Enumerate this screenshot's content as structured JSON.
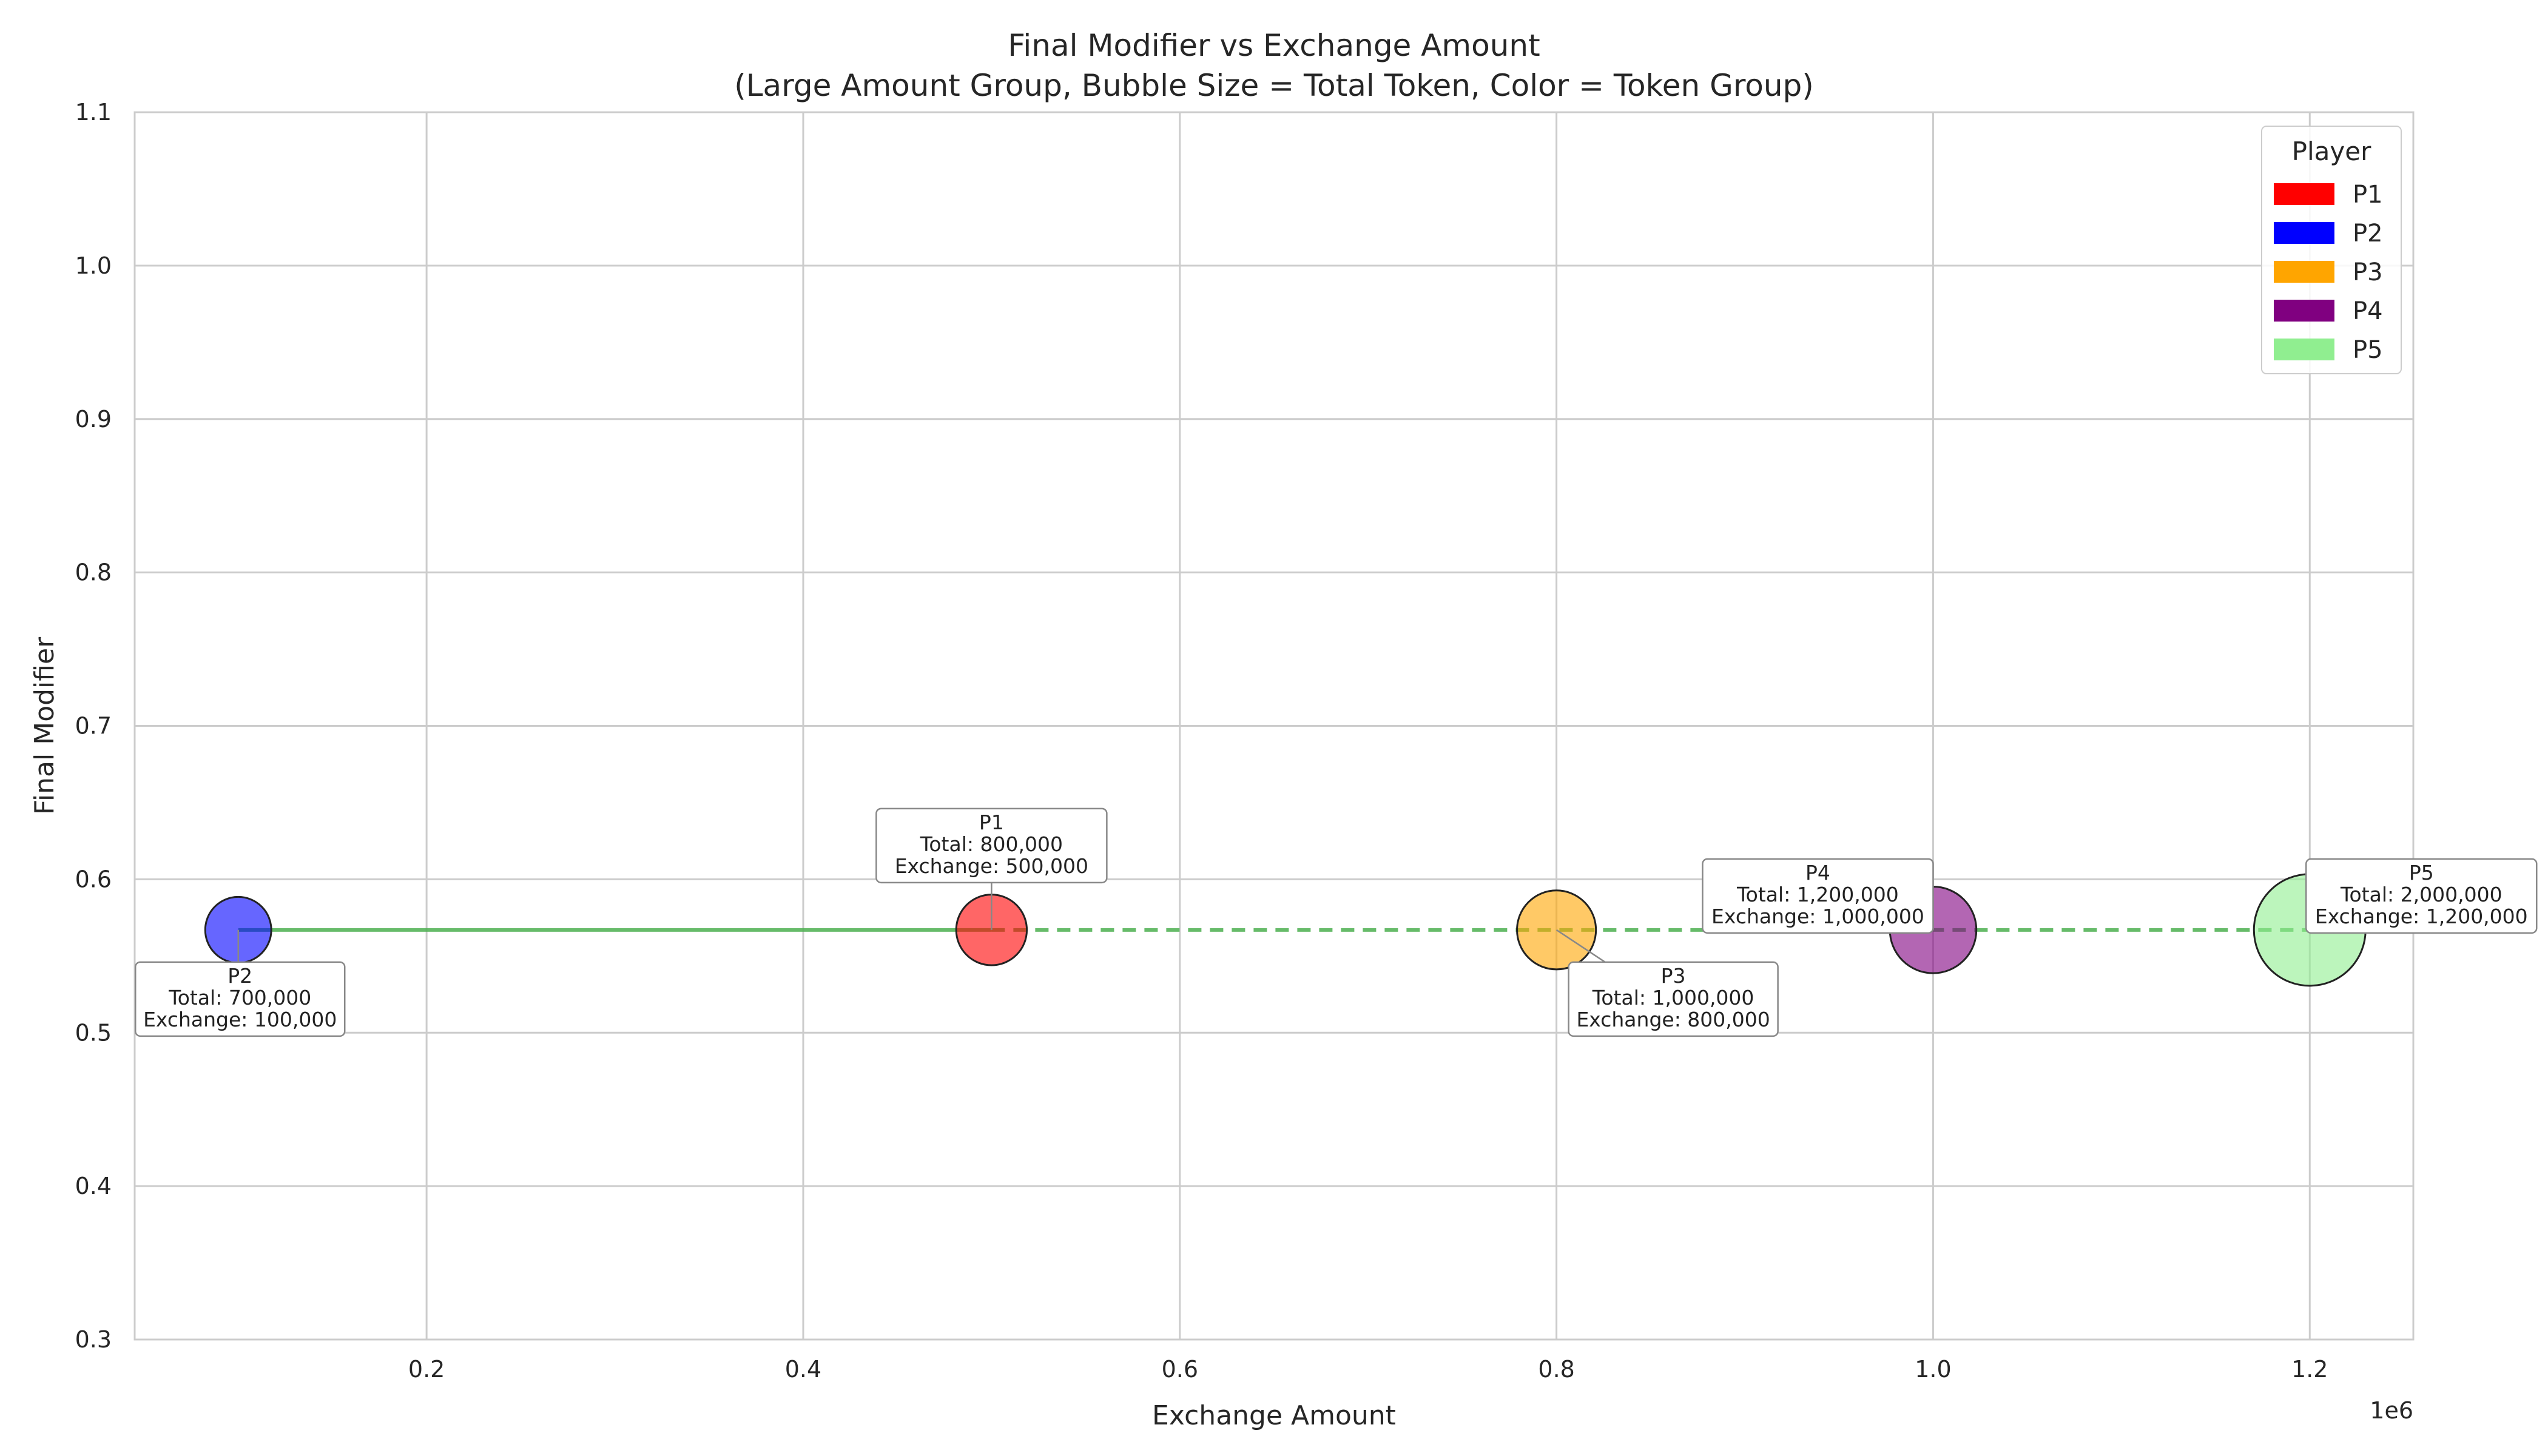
{
  "chart_data": {
    "type": "scatter",
    "subtype": "bubble",
    "title": "Final Modifier vs Exchange Amount",
    "subtitle": "(Large Amount Group, Bubble Size = Total Token, Color = Token Group)",
    "xlabel": "Exchange Amount",
    "ylabel": "Final Modifier",
    "x_offset_text": "1e6",
    "x_scale": 1000000,
    "xlim": [
      0.045,
      1.255
    ],
    "ylim": [
      0.3,
      1.1
    ],
    "xticks": [
      0.2,
      0.4,
      0.6,
      0.8,
      1.0,
      1.2
    ],
    "xtick_labels": [
      "0.2",
      "0.4",
      "0.6",
      "0.8",
      "1.0",
      "1.2"
    ],
    "yticks": [
      0.3,
      0.4,
      0.5,
      0.6,
      0.7,
      0.8,
      0.9,
      1.0,
      1.1
    ],
    "ytick_labels": [
      "0.3",
      "0.4",
      "0.5",
      "0.6",
      "0.7",
      "0.8",
      "0.9",
      "1.0",
      "1.1"
    ],
    "grid": true,
    "legend": {
      "title": "Player",
      "placement": "top-right",
      "entries": [
        {
          "label": "P1",
          "color": "#ff0000"
        },
        {
          "label": "P2",
          "color": "#0000ff"
        },
        {
          "label": "P3",
          "color": "#ffa500"
        },
        {
          "label": "P4",
          "color": "#800080"
        },
        {
          "label": "P5",
          "color": "#90ee90"
        }
      ]
    },
    "points": [
      {
        "name": "P1",
        "exchange": 500000,
        "total": 800000,
        "modifier": 0.567,
        "color": "#ff0000",
        "label_lines": [
          "P1",
          "Total: 800,000",
          "Exchange: 500,000"
        ],
        "label_position": "above"
      },
      {
        "name": "P2",
        "exchange": 100000,
        "total": 700000,
        "modifier": 0.567,
        "color": "#0000ff",
        "label_lines": [
          "P2",
          "Total: 700,000",
          "Exchange: 100,000"
        ],
        "label_position": "below"
      },
      {
        "name": "P3",
        "exchange": 800000,
        "total": 1000000,
        "modifier": 0.567,
        "color": "#ffa500",
        "label_lines": [
          "P3",
          "Total: 1,000,000",
          "Exchange: 800,000"
        ],
        "label_position": "below-right"
      },
      {
        "name": "P4",
        "exchange": 1000000,
        "total": 1200000,
        "modifier": 0.567,
        "color": "#800080",
        "label_lines": [
          "P4",
          "Total: 1,200,000",
          "Exchange: 1,000,000"
        ],
        "label_position": "above-left"
      },
      {
        "name": "P5",
        "exchange": 1200000,
        "total": 2000000,
        "modifier": 0.567,
        "color": "#90ee90",
        "label_lines": [
          "P5",
          "Total: 2,000,000",
          "Exchange: 1,200,000"
        ],
        "label_position": "above-right"
      }
    ],
    "trend_lines": [
      {
        "style": "solid",
        "color": "#4caf50",
        "from_exchange": 100000,
        "to_exchange": 500000,
        "modifier": 0.567
      },
      {
        "style": "dashed",
        "color": "#4caf50",
        "from_exchange": 500000,
        "to_exchange": 1200000,
        "modifier": 0.567
      }
    ]
  }
}
